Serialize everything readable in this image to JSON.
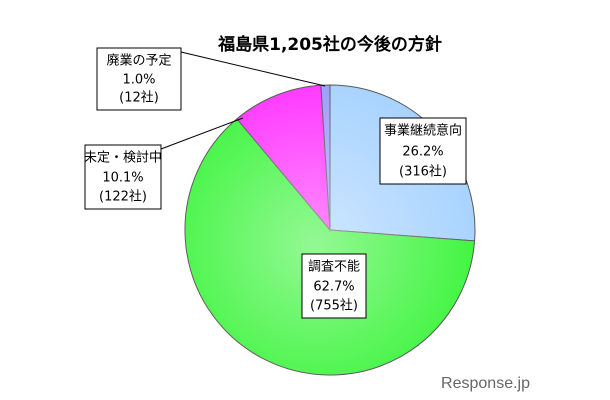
{
  "chart_data": {
    "type": "pie",
    "title": "福島県1,205社の今後の方針",
    "categories": [
      "事業継続意向",
      "調査不能",
      "未定・検討中",
      "廃業の予定"
    ],
    "values": [
      26.2,
      62.7,
      10.1,
      1.0
    ],
    "value_labels": [
      "26.2%",
      "62.7%",
      "10.1%",
      "1.0%"
    ],
    "count_labels": [
      "(316社)",
      "(755社)",
      "(122社)",
      "(12社)"
    ],
    "colors": [
      "#a6d2ff",
      "#3cf43c",
      "#ff33ff",
      "#9b9bff"
    ],
    "start_angle": "top",
    "direction": "clockwise"
  },
  "watermark": "Response.jp"
}
